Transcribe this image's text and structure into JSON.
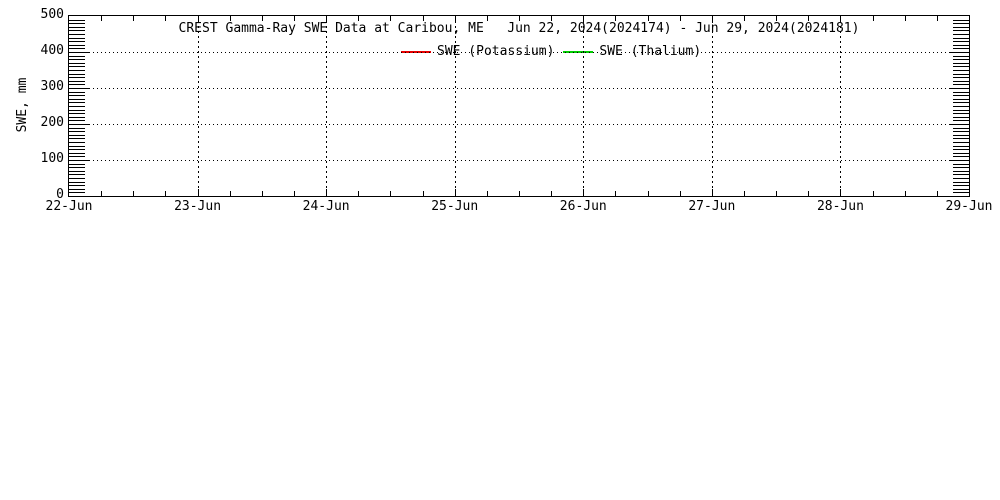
{
  "figure": {
    "background": "#ffffff",
    "frame_color": "#000000"
  },
  "chart_data": {
    "type": "line",
    "title": "CREST Gamma-Ray SWE Data at Caribou, ME   Jun 22, 2024(2024174) - Jun 29, 2024(2024181)",
    "ylabel": "SWE, mm",
    "ylim": [
      0,
      500
    ],
    "yticks": [
      0,
      100,
      200,
      300,
      400,
      500
    ],
    "y_minor_step": 10,
    "x_categories": [
      "22-Jun",
      "23-Jun",
      "24-Jun",
      "25-Jun",
      "26-Jun",
      "27-Jun",
      "28-Jun",
      "29-Jun"
    ],
    "x_minor_ticks_per_day": 4,
    "grid": "dotted lines at major x (daily) and major y (every 100 mm) ticks",
    "legend_position": "inside top, on the 400 mm gridline",
    "series": [
      {
        "name": "SWE (Potassium)",
        "color": "#e60000",
        "values": []
      },
      {
        "name": "SWE (Thalium)",
        "color": "#00cc00",
        "values": []
      }
    ]
  }
}
